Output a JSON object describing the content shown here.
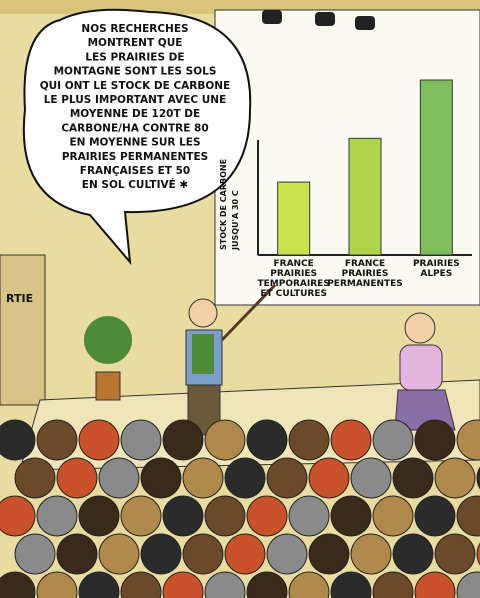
{
  "bubble": {
    "lines": [
      "NOS RECHERCHES",
      "MONTRENT QUE",
      "LES PRAIRIES DE",
      "MONTAGNE SONT LES SOLS",
      "QUI ONT LE STOCK DE CARBONE",
      "LE PLUS IMPORTANT AVEC UNE",
      "MOYENNE DE 120T DE",
      "CARBONE/HA CONTRE 80",
      "EN MOYENNE SUR LES",
      "PRAIRIES PERMANENTES",
      "FRANÇAISES ET 50",
      "EN SOL CULTIVÉ ✱"
    ]
  },
  "sign": "RTIE",
  "chart_data": {
    "type": "bar",
    "ylabel": [
      "STOCK DE CARBONE",
      "JUSQU'A 30 C"
    ],
    "categories": [
      [
        "FRANCE",
        "PRAIRIES",
        "TEMPORAIRES",
        "ET CULTURES"
      ],
      [
        "FRANCE",
        "PRAIRIES",
        "PERMANENTES"
      ],
      [
        "PRAIRIES",
        "ALPES"
      ]
    ],
    "values": [
      50,
      80,
      120
    ],
    "colors": [
      "#c9e24e",
      "#b0d44c",
      "#80bd5c"
    ],
    "ylim": [
      0,
      120
    ]
  }
}
